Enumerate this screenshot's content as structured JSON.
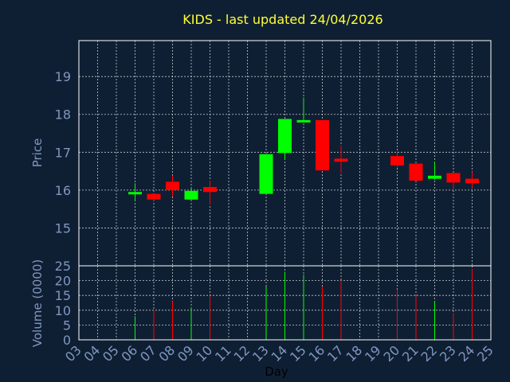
{
  "chart_data": {
    "type": "candlestick",
    "title": "KIDS - last updated 24/04/2026",
    "xlabel": "Day",
    "ylabel_price": "Price",
    "ylabel_volume": "Volume (0000)",
    "categories": [
      "03",
      "04",
      "05",
      "06",
      "07",
      "08",
      "09",
      "10",
      "11",
      "12",
      "13",
      "14",
      "15",
      "16",
      "17",
      "18",
      "19",
      "20",
      "21",
      "22",
      "23",
      "24",
      "25"
    ],
    "price_ylim": [
      14.0,
      19.95
    ],
    "price_ticks": [
      15,
      16,
      17,
      18,
      19
    ],
    "volume_ylim": [
      0,
      25
    ],
    "volume_ticks": [
      0,
      5,
      10,
      15,
      20,
      25
    ],
    "grid": true,
    "colors": {
      "up": "#00ff00",
      "down": "#ff0000"
    },
    "series": [
      {
        "day": "06",
        "open": 15.93,
        "high": 16.18,
        "low": 15.72,
        "close": 15.95,
        "volume": 8
      },
      {
        "day": "07",
        "open": 15.9,
        "high": 15.9,
        "low": 15.72,
        "close": 15.75,
        "volume": 10
      },
      {
        "day": "08",
        "open": 16.22,
        "high": 16.38,
        "low": 15.83,
        "close": 16.0,
        "volume": 13
      },
      {
        "day": "09",
        "open": 15.75,
        "high": 16.05,
        "low": 15.72,
        "close": 15.98,
        "volume": 11
      },
      {
        "day": "10",
        "open": 16.08,
        "high": 16.25,
        "low": 15.62,
        "close": 15.95,
        "volume": 15
      },
      {
        "day": "13",
        "open": 15.9,
        "high": 16.95,
        "low": 15.9,
        "close": 16.95,
        "volume": 18
      },
      {
        "day": "14",
        "open": 16.98,
        "high": 17.88,
        "low": 16.82,
        "close": 17.88,
        "volume": 23
      },
      {
        "day": "15",
        "open": 17.8,
        "high": 18.45,
        "low": 17.8,
        "close": 17.85,
        "volume": 22
      },
      {
        "day": "16",
        "open": 17.85,
        "high": 17.85,
        "low": 16.52,
        "close": 16.52,
        "volume": 18
      },
      {
        "day": "17",
        "open": 16.83,
        "high": 17.18,
        "low": 16.45,
        "close": 16.75,
        "volume": 20
      },
      {
        "day": "20",
        "open": 16.9,
        "high": 17.02,
        "low": 16.6,
        "close": 16.65,
        "volume": 17
      },
      {
        "day": "21",
        "open": 16.7,
        "high": 16.7,
        "low": 16.25,
        "close": 16.25,
        "volume": 15
      },
      {
        "day": "22",
        "open": 16.3,
        "high": 16.75,
        "low": 16.27,
        "close": 16.38,
        "volume": 13
      },
      {
        "day": "23",
        "open": 16.45,
        "high": 16.45,
        "low": 16.05,
        "close": 16.2,
        "volume": 9
      },
      {
        "day": "24",
        "open": 16.3,
        "high": 16.48,
        "low": 16.05,
        "close": 16.18,
        "volume": 24
      }
    ]
  }
}
